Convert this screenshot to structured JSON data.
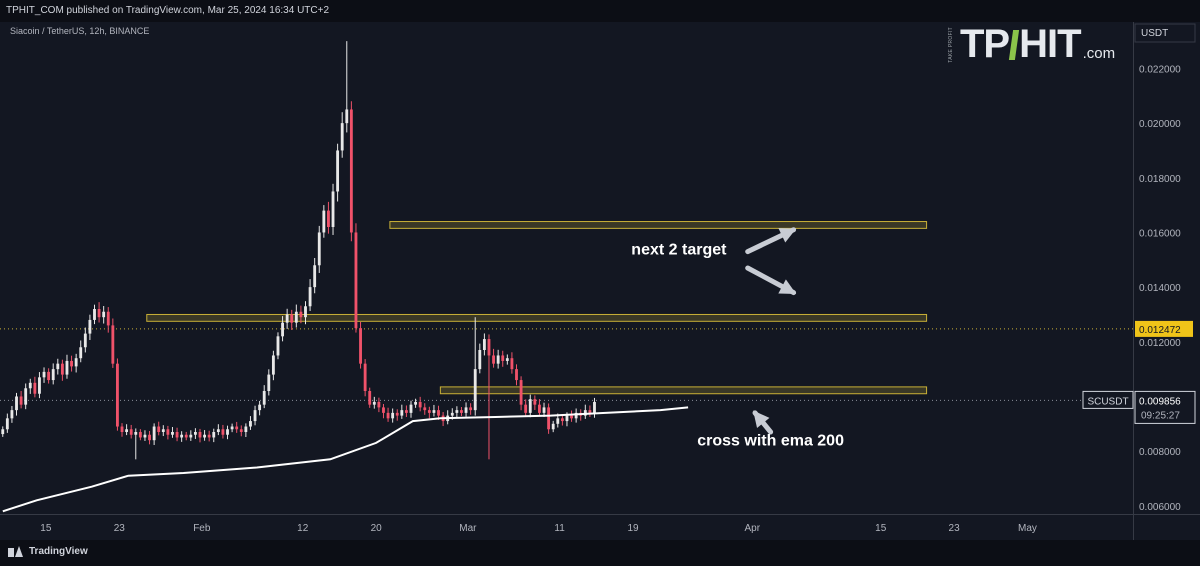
{
  "header": {
    "publisher": "TPHIT_COM published on TradingView.com, Mar 25, 2024 16:34 UTC+2",
    "symbol": "Siacoin / TetherUS, 12h, BINANCE"
  },
  "brand": {
    "tp": "TP",
    "hit": "HIT",
    "com": ".com",
    "small": "TAKE PROFIT",
    "accent": "#8bc34a"
  },
  "footer": {
    "logo_text": "TradingView"
  },
  "colors": {
    "background": "#131722",
    "up": "#e8e8e8",
    "down": "#f0526a",
    "ema": "#ffffff",
    "zone": "#c9b037",
    "price_label": "#f0c419"
  },
  "chart_data": {
    "type": "candlestick",
    "y_scale_label": "USDT",
    "ylim": [
      0.0057,
      0.0237
    ],
    "y_ticks": [
      "0.006000",
      "0.008000",
      "0.010000",
      "0.012000",
      "0.014000",
      "0.016000",
      "0.018000",
      "0.020000",
      "0.022000"
    ],
    "x_ticks": [
      {
        "label": "15",
        "day": 15
      },
      {
        "label": "23",
        "day": 23
      },
      {
        "label": "Feb",
        "day": 32
      },
      {
        "label": "12",
        "day": 43
      },
      {
        "label": "20",
        "day": 51
      },
      {
        "label": "Mar",
        "day": 61
      },
      {
        "label": "11",
        "day": 71
      },
      {
        "label": "19",
        "day": 79
      },
      {
        "label": "Apr",
        "day": 92
      },
      {
        "label": "15",
        "day": 106
      },
      {
        "label": "23",
        "day": 114
      },
      {
        "label": "May",
        "day": 122
      }
    ],
    "candle_closes": [
      0.0088,
      0.0092,
      0.0095,
      0.01,
      0.0097,
      0.0103,
      0.0105,
      0.0101,
      0.0107,
      0.0109,
      0.0106,
      0.011,
      0.0112,
      0.0108,
      0.0113,
      0.0111,
      0.0114,
      0.0118,
      0.0123,
      0.0128,
      0.0132,
      0.0129,
      0.0131,
      0.0126,
      0.0112,
      0.0089,
      0.0087,
      0.0088,
      0.0086,
      0.0087,
      0.0085,
      0.0086,
      0.0084,
      0.0089,
      0.0087,
      0.0088,
      0.0086,
      0.0087,
      0.0085,
      0.0086,
      0.0085,
      0.0086,
      0.0087,
      0.0085,
      0.0086,
      0.0085,
      0.0087,
      0.0088,
      0.0086,
      0.0088,
      0.0089,
      0.0088,
      0.0087,
      0.0089,
      0.0091,
      0.0095,
      0.0097,
      0.0102,
      0.0108,
      0.0115,
      0.0122,
      0.0127,
      0.013,
      0.0127,
      0.0131,
      0.0129,
      0.0133,
      0.014,
      0.0148,
      0.016,
      0.0168,
      0.0162,
      0.0175,
      0.019,
      0.02,
      0.0205,
      0.016,
      0.0125,
      0.0112,
      0.0102,
      0.0097,
      0.0098,
      0.0096,
      0.0094,
      0.0092,
      0.0094,
      0.0093,
      0.0095,
      0.0094,
      0.0097,
      0.0098,
      0.0096,
      0.0095,
      0.0094,
      0.0095,
      0.0093,
      0.0091,
      0.0093,
      0.0094,
      0.0095,
      0.0094,
      0.0096,
      0.0095,
      0.011,
      0.0117,
      0.0121,
      0.0115,
      0.0112,
      0.0115,
      0.0113,
      0.0114,
      0.011,
      0.0106,
      0.0097,
      0.0094,
      0.0099,
      0.0097,
      0.0094,
      0.0096,
      0.0088,
      0.009,
      0.0092,
      0.0091,
      0.0093,
      0.0092,
      0.0094,
      0.0093,
      0.0095,
      0.0094,
      0.0098
    ],
    "candle_start_day": 10.3,
    "candle_step_days": 0.5,
    "ema200": [
      {
        "day": 10.3,
        "value": 0.0058
      },
      {
        "day": 14,
        "value": 0.0062
      },
      {
        "day": 20,
        "value": 0.0067
      },
      {
        "day": 24,
        "value": 0.0071
      },
      {
        "day": 30,
        "value": 0.0072
      },
      {
        "day": 38,
        "value": 0.0074
      },
      {
        "day": 46,
        "value": 0.0077
      },
      {
        "day": 51,
        "value": 0.0083
      },
      {
        "day": 55,
        "value": 0.0091
      },
      {
        "day": 58,
        "value": 0.0092
      },
      {
        "day": 64,
        "value": 0.00925
      },
      {
        "day": 70,
        "value": 0.0093
      },
      {
        "day": 76,
        "value": 0.0094
      },
      {
        "day": 82,
        "value": 0.0095
      },
      {
        "day": 85,
        "value": 0.0096
      }
    ],
    "zones": [
      {
        "day_start": 52.5,
        "day_end": 111,
        "low": 0.01615,
        "high": 0.0164
      },
      {
        "day_start": 26,
        "day_end": 111,
        "low": 0.01275,
        "high": 0.013
      },
      {
        "day_start": 58,
        "day_end": 111,
        "low": 0.0101,
        "high": 0.01035
      }
    ],
    "hlines": [
      {
        "value": 0.012472,
        "label": "0.012472",
        "style": "dotted-yellow"
      },
      {
        "value": 0.009856,
        "label": "0.009856",
        "style": "dotted-white"
      }
    ],
    "price_label": {
      "symbol": "SCUSDT",
      "value": "0.009856",
      "countdown": "09:25:27"
    },
    "annotations": [
      {
        "text": "next 2 target",
        "day": 84,
        "value": 0.0152
      },
      {
        "text": "cross with ema 200",
        "day": 94,
        "value": 0.0082
      }
    ],
    "arrows": [
      {
        "from_day": 91.5,
        "from_value": 0.0153,
        "to_day": 96.5,
        "to_value": 0.0161
      },
      {
        "from_day": 91.5,
        "from_value": 0.0147,
        "to_day": 96.5,
        "to_value": 0.0138
      },
      {
        "from_day": 94,
        "from_value": 0.0087,
        "to_day": 92.3,
        "to_value": 0.0094
      }
    ]
  }
}
